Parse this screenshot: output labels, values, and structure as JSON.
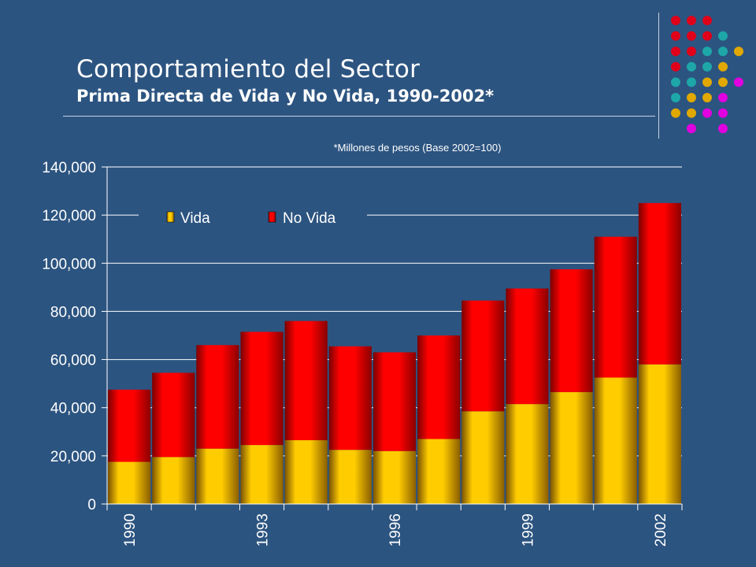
{
  "header": {
    "title": "Comportamiento del Sector",
    "subtitle": "Prima Directa de Vida y No Vida, 1990-2002*",
    "note": "*Millones de pesos (Base 2002=100)"
  },
  "decoration": {
    "dot_grid": [
      [
        "red",
        "red",
        "red",
        "",
        ""
      ],
      [
        "red",
        "red",
        "red",
        "teal",
        ""
      ],
      [
        "red",
        "red",
        "teal",
        "teal",
        "gold"
      ],
      [
        "red",
        "teal",
        "teal",
        "gold",
        ""
      ],
      [
        "teal",
        "teal",
        "gold",
        "gold",
        "magenta"
      ],
      [
        "teal",
        "gold",
        "gold",
        "magenta",
        ""
      ],
      [
        "gold",
        "gold",
        "magenta",
        "magenta",
        ""
      ],
      [
        "",
        "magenta",
        "",
        "magenta",
        ""
      ]
    ],
    "colors": {
      "red": "#e0001a",
      "teal": "#1ea7a8",
      "gold": "#e0a800",
      "magenta": "#e000e0"
    }
  },
  "chart_data": {
    "type": "bar",
    "stacked": true,
    "categories": [
      "1990",
      "1991",
      "1992",
      "1993",
      "1994",
      "1995",
      "1996",
      "1997",
      "1998",
      "1999",
      "2000",
      "2001",
      "2002"
    ],
    "x_tick_labels": [
      "1990",
      "",
      "",
      "1993",
      "",
      "",
      "1996",
      "",
      "",
      "1999",
      "",
      "",
      "2002"
    ],
    "series": [
      {
        "name": "Vida",
        "color": "#ffcc00",
        "values": [
          17500,
          19500,
          23000,
          24500,
          26500,
          22500,
          22000,
          27000,
          38500,
          41500,
          46500,
          52500,
          58000
        ]
      },
      {
        "name": "No Vida",
        "color": "#ff0000",
        "values": [
          30000,
          35000,
          43000,
          47000,
          49500,
          43000,
          41000,
          43000,
          46000,
          48000,
          51000,
          58500,
          67000
        ]
      }
    ],
    "ylim": [
      0,
      140000
    ],
    "yticks": [
      0,
      20000,
      40000,
      60000,
      80000,
      100000,
      120000,
      140000
    ],
    "ytick_labels": [
      "0",
      "20,000",
      "40,000",
      "60,000",
      "80,000",
      "100,000",
      "120,000",
      "140,000"
    ],
    "grid": true,
    "legend_position": "top-left",
    "xlabel": "",
    "ylabel": ""
  }
}
